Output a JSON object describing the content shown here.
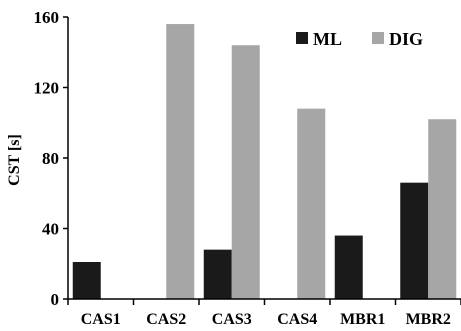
{
  "chart_data": {
    "type": "bar",
    "title": "",
    "xlabel": "",
    "ylabel": "CST [s]",
    "ylim": [
      0,
      160
    ],
    "yticks": [
      0,
      40,
      80,
      120,
      160
    ],
    "categories": [
      "CAS1",
      "CAS2",
      "CAS3",
      "CAS4",
      "MBR1",
      "MBR2"
    ],
    "series": [
      {
        "name": "ML",
        "color": "#1a1a1a",
        "values": [
          21,
          0,
          28,
          0,
          36,
          66
        ]
      },
      {
        "name": "DIG",
        "color": "#a6a6a6",
        "values": [
          0,
          156,
          144,
          108,
          0,
          102
        ]
      }
    ],
    "grid": false,
    "legend": "top-right"
  }
}
